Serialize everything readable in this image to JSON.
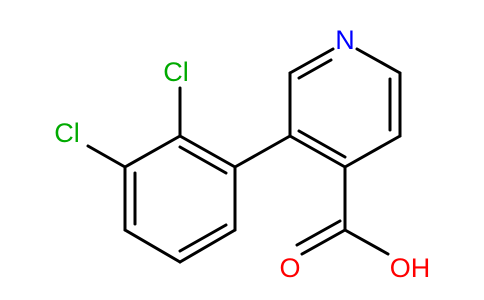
{
  "atoms": {
    "nitrogen": "N",
    "chlorine_top": "Cl",
    "chlorine_left": "Cl",
    "carbonyl_oxygen": "O",
    "hydroxyl": "OH"
  }
}
